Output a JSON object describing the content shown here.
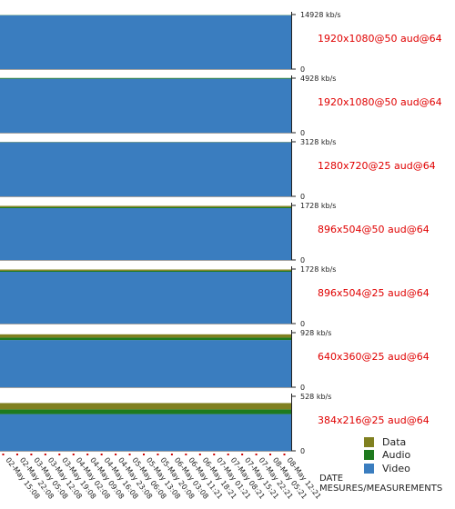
{
  "chart_data": {
    "type": "area",
    "stacked": true,
    "colors": {
      "Data": "#808020",
      "Audio": "#1e7a1e",
      "Video": "#3a7dbf",
      "stream_label": "#e00000",
      "date_marker": "#cc0000"
    },
    "legend": {
      "placement": "bottom-right",
      "entries": [
        "Data",
        "Audio",
        "Video"
      ]
    },
    "xlabel_line1": "DATE",
    "xlabel_line2": "MESURES/MEASUREMENTS",
    "x_categories": [
      "02-May 15:08",
      "02-May 22:08",
      "03-May 05:08",
      "03-May 12:08",
      "03-May 19:08",
      "04-May 02:08",
      "04-May 09:08",
      "04-May 16:08",
      "04-May 23:08",
      "05-May 06:08",
      "05-May 13:08",
      "05-May 20:08",
      "06-May 03:08",
      "06-May 11:21",
      "06-May 18:21",
      "07-May 01:21",
      "07-May 08:21",
      "07-May 15:21",
      "07-May 22:21",
      "08-May 05:21",
      "08-May 12:21"
    ],
    "panels": [
      {
        "stream": "1920x1080@50 aud@64",
        "ymax_label": "14928 kb/s",
        "ymin_label": "0",
        "ylim": [
          0,
          14928
        ],
        "series": [
          {
            "name": "Video",
            "value": 14500
          },
          {
            "name": "Audio",
            "value": 64
          },
          {
            "name": "Data",
            "value": 0
          }
        ]
      },
      {
        "stream": "1920x1080@50 aud@64",
        "ymax_label": "4928 kb/s",
        "ymin_label": "0",
        "ylim": [
          0,
          4928
        ],
        "series": [
          {
            "name": "Video",
            "value": 4800
          },
          {
            "name": "Audio",
            "value": 64
          },
          {
            "name": "Data",
            "value": 0
          }
        ]
      },
      {
        "stream": "1280x720@25 aud@64",
        "ymax_label": "3128 kb/s",
        "ymin_label": "0",
        "ylim": [
          0,
          3128
        ],
        "series": [
          {
            "name": "Video",
            "value": 3050
          },
          {
            "name": "Audio",
            "value": 10
          },
          {
            "name": "Data",
            "value": 10
          }
        ]
      },
      {
        "stream": "896x504@50 aud@64",
        "ymax_label": "1728 kb/s",
        "ymin_label": "0",
        "ylim": [
          0,
          1728
        ],
        "series": [
          {
            "name": "Video",
            "value": 1615
          },
          {
            "name": "Audio",
            "value": 30
          },
          {
            "name": "Data",
            "value": 40
          }
        ]
      },
      {
        "stream": "896x504@25 aud@64",
        "ymax_label": "1728 kb/s",
        "ymin_label": "0",
        "ylim": [
          0,
          1728
        ],
        "series": [
          {
            "name": "Video",
            "value": 1615
          },
          {
            "name": "Audio",
            "value": 30
          },
          {
            "name": "Data",
            "value": 40
          }
        ]
      },
      {
        "stream": "640x360@25 aud@64",
        "ymax_label": "928 kb/s",
        "ymin_label": "0",
        "ylim": [
          0,
          928
        ],
        "series": [
          {
            "name": "Video",
            "value": 790
          },
          {
            "name": "Audio",
            "value": 40
          },
          {
            "name": "Data",
            "value": 55
          }
        ]
      },
      {
        "stream": "384x216@25 aud@64",
        "ymax_label": "528 kb/s",
        "ymin_label": "0",
        "ylim": [
          0,
          528
        ],
        "series": [
          {
            "name": "Video",
            "value": 350
          },
          {
            "name": "Audio",
            "value": 45
          },
          {
            "name": "Data",
            "value": 60
          }
        ]
      }
    ]
  }
}
